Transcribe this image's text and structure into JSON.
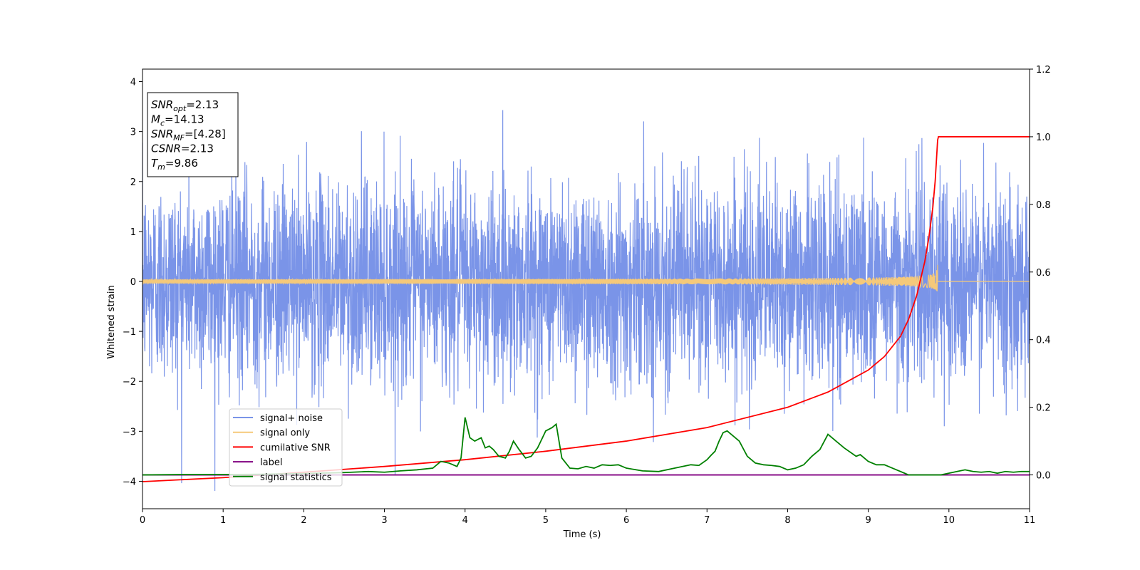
{
  "chart_data": {
    "type": "line",
    "title": "",
    "xlabel": "Time (s)",
    "ylabel": "Whitened strain",
    "xlim": [
      0,
      11
    ],
    "ylim_left": [
      -4.55,
      4.25
    ],
    "ylim_right": [
      -0.1,
      1.2
    ],
    "x_ticks": [
      0,
      1,
      2,
      3,
      4,
      5,
      6,
      7,
      8,
      9,
      10,
      11
    ],
    "y_ticks_left": [
      -4,
      -3,
      -2,
      -1,
      0,
      1,
      2,
      3,
      4
    ],
    "y_ticks_right": [
      0.0,
      0.2,
      0.4,
      0.6,
      0.8,
      1.0,
      1.2
    ],
    "grid": false,
    "legend_position": "lower-left",
    "info_box": {
      "lines": [
        {
          "base": "SNR",
          "sub": "opt",
          "value": "=2.13"
        },
        {
          "base": "M",
          "sub": "c",
          "value": "=14.13"
        },
        {
          "base": "SNR",
          "sub": "MF",
          "value": "=[4.28]"
        },
        {
          "base": "CSNR",
          "sub": "",
          "value": "=2.13"
        },
        {
          "base": "T",
          "sub": "m",
          "value": "=9.86"
        }
      ]
    },
    "series": [
      {
        "name": "signal+ noise",
        "color": "#7a94e8",
        "axis": "left",
        "kind": "noise",
        "sigma": 1.0,
        "x_range": [
          0,
          11
        ]
      },
      {
        "name": "signal only",
        "color": "#f5c97a",
        "axis": "left",
        "kind": "chirp",
        "merger_time": 9.86,
        "peak_amplitude": 0.45
      },
      {
        "name": "cumilative SNR",
        "color": "#ff0000",
        "axis": "right",
        "x": [
          0,
          1,
          2,
          3,
          4,
          5,
          6,
          7,
          8,
          8.5,
          9,
          9.2,
          9.4,
          9.5,
          9.6,
          9.7,
          9.75,
          9.8,
          9.83,
          9.86,
          9.87,
          11
        ],
        "y": [
          -0.02,
          -0.008,
          0.008,
          0.025,
          0.045,
          0.07,
          0.1,
          0.14,
          0.2,
          0.245,
          0.31,
          0.35,
          0.41,
          0.46,
          0.53,
          0.63,
          0.7,
          0.79,
          0.87,
          0.99,
          1.0,
          1.0
        ]
      },
      {
        "name": "label",
        "color": "#800080",
        "axis": "right",
        "x": [
          0,
          11
        ],
        "y": [
          0.0,
          0.0
        ]
      },
      {
        "name": "signal statistics",
        "color": "#008000",
        "axis": "right",
        "x": [
          0,
          0.5,
          1,
          1.5,
          2,
          2.5,
          2.8,
          3.0,
          3.2,
          3.4,
          3.6,
          3.7,
          3.8,
          3.9,
          3.95,
          4.0,
          4.06,
          4.12,
          4.2,
          4.25,
          4.3,
          4.35,
          4.42,
          4.5,
          4.55,
          4.6,
          4.67,
          4.75,
          4.82,
          4.9,
          5.0,
          5.08,
          5.13,
          5.2,
          5.3,
          5.4,
          5.5,
          5.6,
          5.7,
          5.8,
          5.9,
          6.0,
          6.2,
          6.4,
          6.6,
          6.8,
          6.9,
          7.0,
          7.05,
          7.1,
          7.15,
          7.2,
          7.25,
          7.3,
          7.4,
          7.5,
          7.6,
          7.7,
          7.8,
          7.9,
          8.0,
          8.1,
          8.2,
          8.3,
          8.4,
          8.5,
          8.6,
          8.7,
          8.85,
          8.9,
          9.0,
          9.1,
          9.2,
          9.3,
          9.5,
          9.7,
          9.9,
          10.0,
          10.1,
          10.2,
          10.3,
          10.4,
          10.5,
          10.6,
          10.7,
          10.8,
          10.9,
          11
        ],
        "y": [
          0.0,
          0.001,
          0.001,
          0.002,
          0.004,
          0.007,
          0.01,
          0.008,
          0.012,
          0.015,
          0.02,
          0.04,
          0.035,
          0.025,
          0.05,
          0.17,
          0.11,
          0.1,
          0.11,
          0.08,
          0.085,
          0.075,
          0.055,
          0.05,
          0.07,
          0.1,
          0.075,
          0.05,
          0.055,
          0.08,
          0.13,
          0.14,
          0.15,
          0.05,
          0.02,
          0.018,
          0.025,
          0.02,
          0.03,
          0.028,
          0.03,
          0.02,
          0.012,
          0.01,
          0.02,
          0.03,
          0.028,
          0.045,
          0.058,
          0.07,
          0.1,
          0.125,
          0.13,
          0.12,
          0.1,
          0.055,
          0.035,
          0.03,
          0.028,
          0.025,
          0.015,
          0.02,
          0.03,
          0.055,
          0.075,
          0.12,
          0.1,
          0.08,
          0.055,
          0.06,
          0.04,
          0.03,
          0.03,
          0.02,
          0.0,
          0.0,
          0.0,
          0.005,
          0.01,
          0.015,
          0.01,
          0.008,
          0.01,
          0.005,
          0.01,
          0.008,
          0.01,
          0.01
        ]
      }
    ]
  }
}
